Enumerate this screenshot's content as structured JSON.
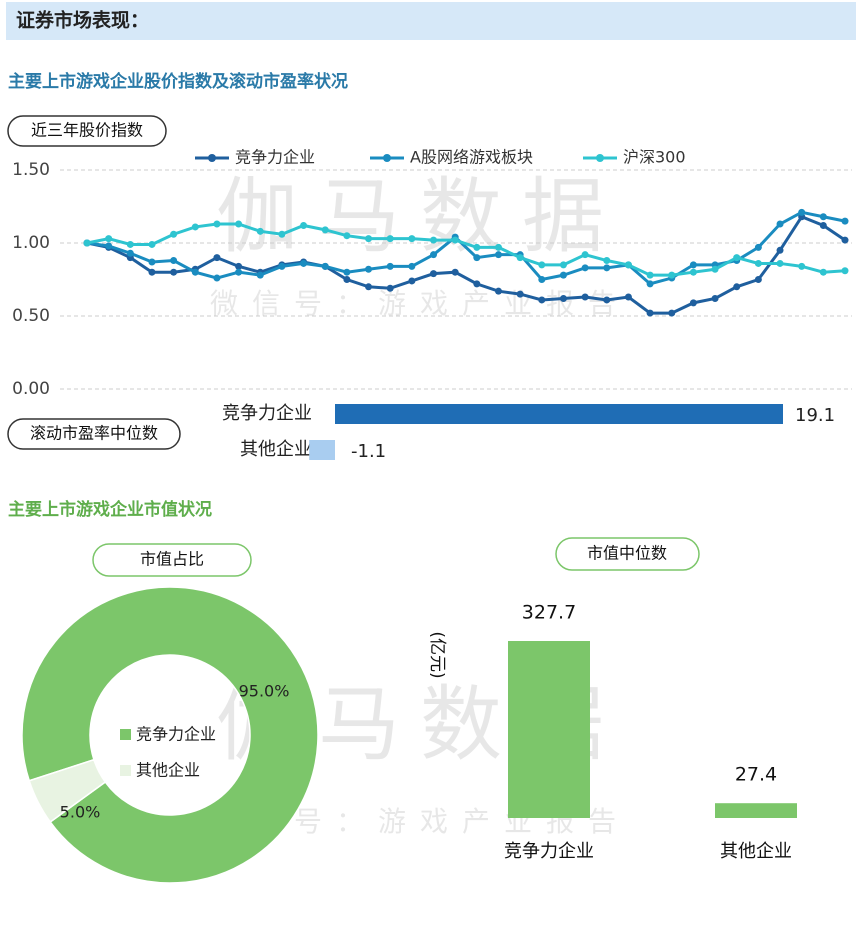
{
  "header": "证券市场表现：",
  "section_titles": [
    "主要上市游戏企业股价指数及滚动市盈率状况",
    "主要上市游戏企业市值状况"
  ],
  "watermark": {
    "brand": "伽马数据",
    "wechat": "微信号：游戏产业报告"
  },
  "chart_data": [
    {
      "type": "line",
      "title": "近三年股价指数",
      "ylim": [
        0,
        1.5
      ],
      "yticks": [
        {
          "value": 0,
          "label": "0.00"
        },
        {
          "value": 0.5,
          "label": "0.50"
        },
        {
          "value": 1,
          "label": "1.00"
        },
        {
          "value": 1.5,
          "label": "1.50"
        }
      ],
      "grid": true,
      "series": [
        {
          "name": "竞争力企业",
          "color": "#1f5f9e",
          "values": [
            1.0,
            0.97,
            0.9,
            0.8,
            0.8,
            0.82,
            0.9,
            0.84,
            0.8,
            0.85,
            0.87,
            0.84,
            0.75,
            0.7,
            0.69,
            0.74,
            0.79,
            0.8,
            0.72,
            0.67,
            0.65,
            0.61,
            0.62,
            0.63,
            0.61,
            0.63,
            0.52,
            0.52,
            0.59,
            0.62,
            0.7,
            0.75,
            0.95,
            1.18,
            1.12,
            1.02
          ]
        },
        {
          "name": "A股网络游戏板块",
          "color": "#1a8cc0",
          "values": [
            1.0,
            0.98,
            0.93,
            0.87,
            0.88,
            0.8,
            0.76,
            0.8,
            0.78,
            0.84,
            0.86,
            0.84,
            0.8,
            0.82,
            0.84,
            0.84,
            0.92,
            1.04,
            0.9,
            0.92,
            0.92,
            0.75,
            0.78,
            0.83,
            0.83,
            0.85,
            0.72,
            0.76,
            0.85,
            0.85,
            0.88,
            0.97,
            1.13,
            1.21,
            1.18,
            1.15
          ]
        },
        {
          "name": "沪深300",
          "color": "#2ec4d0",
          "values": [
            1.0,
            1.03,
            0.99,
            0.99,
            1.06,
            1.11,
            1.13,
            1.13,
            1.08,
            1.06,
            1.12,
            1.09,
            1.05,
            1.03,
            1.03,
            1.03,
            1.02,
            1.02,
            0.97,
            0.97,
            0.9,
            0.85,
            0.85,
            0.92,
            0.88,
            0.85,
            0.78,
            0.78,
            0.8,
            0.82,
            0.9,
            0.86,
            0.86,
            0.84,
            0.8,
            0.81
          ]
        }
      ]
    },
    {
      "type": "hbar",
      "title": "滚动市盈率中位数",
      "categories": [
        "竞争力企业",
        "其他企业"
      ],
      "values": [
        19.1,
        -1.1
      ],
      "colors": [
        "#1f6db5",
        "#a9cdf0"
      ]
    },
    {
      "type": "pie",
      "title": "市值占比",
      "categories": [
        "竞争力企业",
        "其他企业"
      ],
      "values": [
        95.0,
        5.0
      ],
      "value_labels": [
        "95.0%",
        "5.0%"
      ],
      "colors": [
        "#7cc66a",
        "#e8f3e2"
      ]
    },
    {
      "type": "bar",
      "title": "市值中位数",
      "ylabel": "(亿元)",
      "categories": [
        "竞争力企业",
        "其他企业"
      ],
      "values": [
        327.7,
        27.4
      ],
      "color": "#7cc66a"
    }
  ]
}
